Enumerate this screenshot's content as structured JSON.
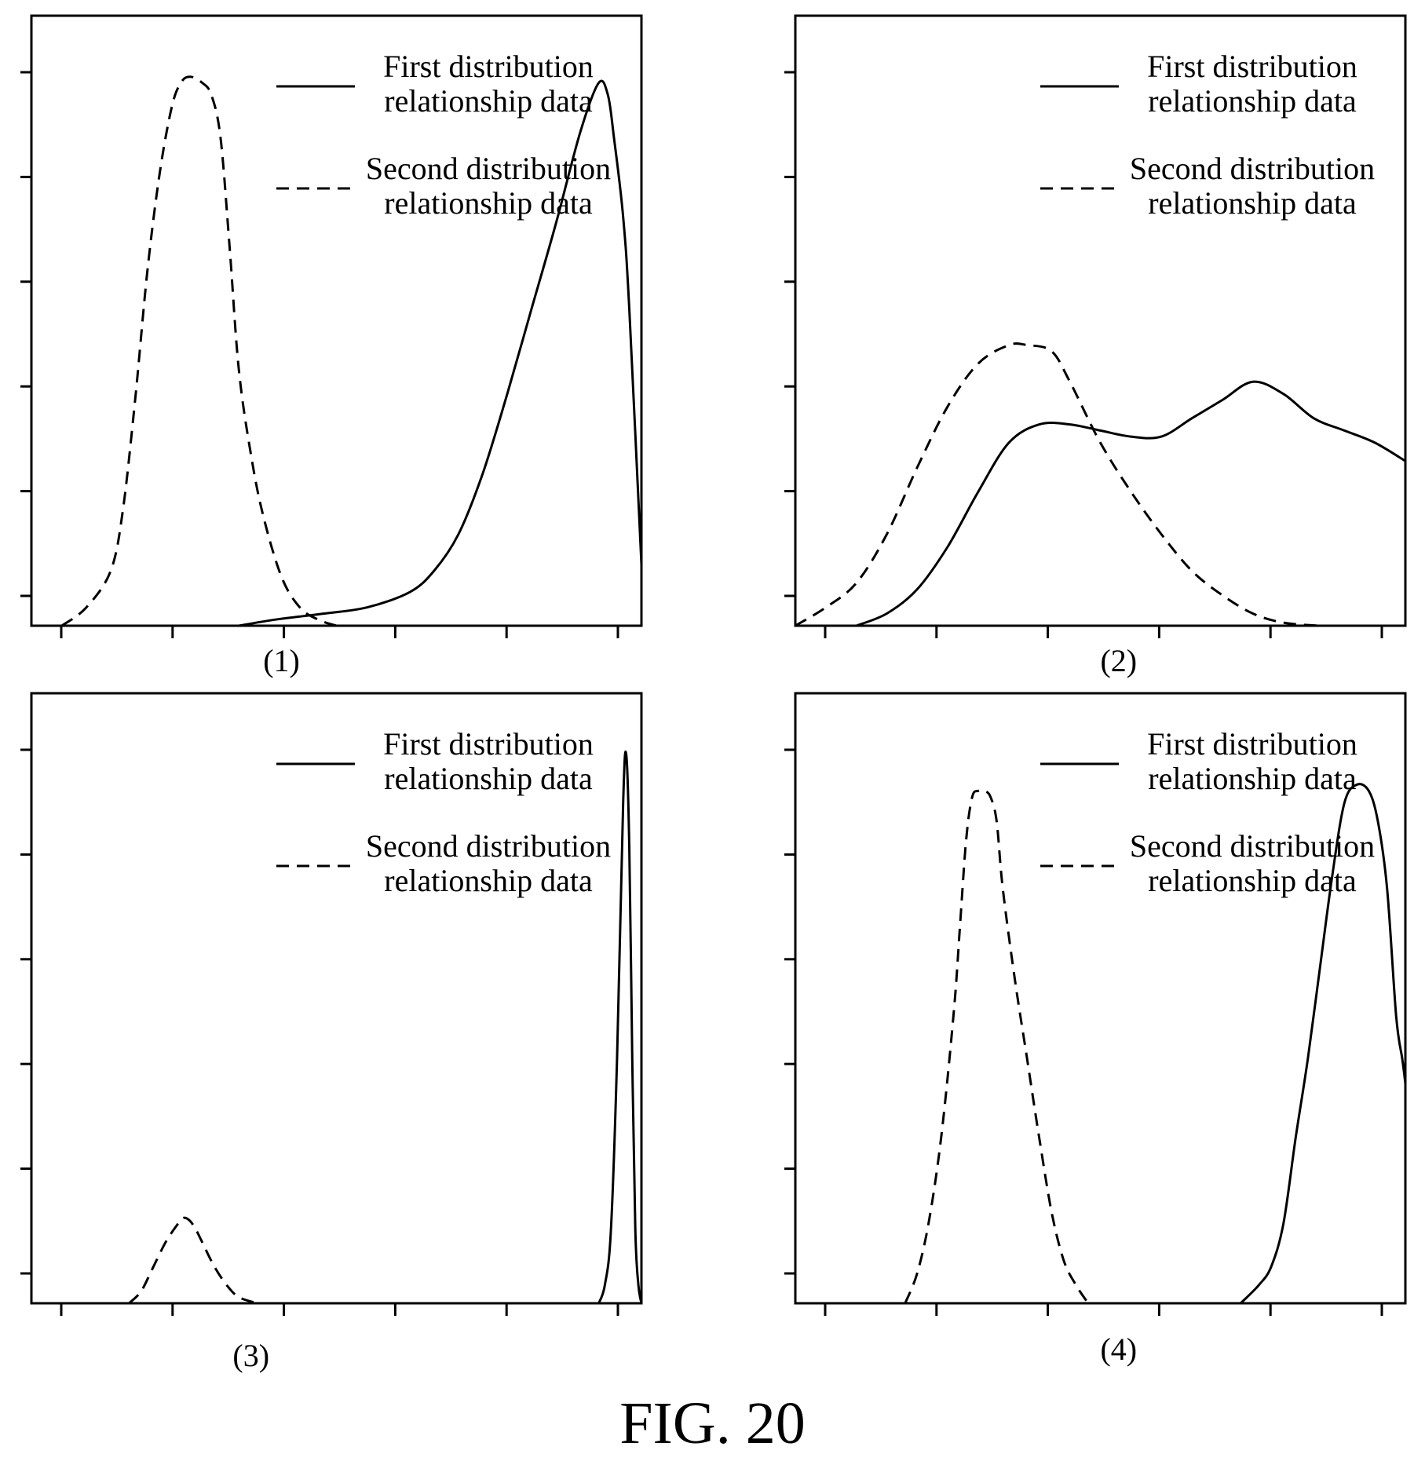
{
  "figure": {
    "caption": "FIG. 20"
  },
  "chart_data": [
    {
      "type": "line",
      "panel_label": "(1)",
      "xlim": [
        0,
        100
      ],
      "ylim": [
        0,
        100
      ],
      "y_ticks": 6,
      "x_ticks": 6,
      "grid": false,
      "legend_placement": "top-right",
      "series": [
        {
          "name": "First distribution relationship data",
          "style": "solid",
          "x": [
            34,
            40,
            48,
            55,
            62,
            66,
            70,
            74,
            78,
            82,
            86,
            90,
            93,
            94.5,
            95.5,
            97,
            98,
            100
          ],
          "y": [
            0,
            1,
            2,
            3,
            5.5,
            9,
            15,
            25,
            38,
            52,
            66,
            81,
            89,
            87,
            80,
            67,
            52,
            10
          ]
        },
        {
          "name": "Second distribution relationship data",
          "style": "dashed",
          "x": [
            5,
            9,
            13,
            15,
            17,
            19,
            21,
            23,
            24.5,
            26,
            28,
            29.5,
            31,
            32.5,
            34,
            36,
            38,
            41,
            44,
            47,
            50
          ],
          "y": [
            0,
            3,
            9,
            19,
            37,
            58,
            74,
            85,
            89,
            90,
            89,
            87,
            80,
            62,
            42,
            28,
            18,
            8,
            3,
            1,
            0
          ]
        }
      ]
    },
    {
      "type": "line",
      "panel_label": "(2)",
      "xlim": [
        0,
        100
      ],
      "ylim": [
        0,
        100
      ],
      "y_ticks": 6,
      "x_ticks": 6,
      "grid": false,
      "legend_placement": "top-right",
      "series": [
        {
          "name": "First distribution relationship data",
          "style": "solid",
          "x": [
            10,
            15,
            20,
            25,
            30,
            35,
            40,
            45,
            50,
            55,
            60,
            65,
            70,
            75,
            80,
            85,
            90,
            95,
            100
          ],
          "y": [
            0,
            2,
            6,
            13,
            22,
            30,
            33,
            33,
            32,
            31,
            31,
            34,
            37,
            40,
            38,
            34,
            32,
            30,
            27
          ]
        },
        {
          "name": "Second distribution relationship data",
          "style": "dashed",
          "x": [
            0,
            5,
            10,
            15,
            20,
            25,
            30,
            35,
            38,
            42,
            45,
            50,
            55,
            60,
            65,
            70,
            75,
            80,
            86
          ],
          "y": [
            0,
            3,
            7,
            15,
            26,
            36,
            43,
            46,
            46,
            45,
            40,
            30,
            22,
            15,
            9,
            5,
            2,
            0.5,
            0
          ]
        }
      ]
    },
    {
      "type": "line",
      "panel_label": "(3)",
      "xlim": [
        0,
        100
      ],
      "ylim": [
        0,
        100
      ],
      "y_ticks": 6,
      "x_ticks": 6,
      "grid": false,
      "legend_placement": "top-right",
      "series": [
        {
          "name": "First distribution relationship data",
          "style": "solid",
          "x": [
            93,
            94,
            95,
            96,
            97,
            97.5,
            98,
            98.5,
            99,
            99.5,
            100
          ],
          "y": [
            0,
            3,
            12,
            40,
            82,
            90,
            75,
            40,
            12,
            3,
            0
          ]
        },
        {
          "name": "Second distribution relationship data",
          "style": "dashed",
          "x": [
            16,
            18,
            20,
            22,
            24,
            25,
            26,
            27,
            28,
            30,
            32,
            34,
            37
          ],
          "y": [
            0,
            2,
            6,
            10,
            13,
            14,
            13.5,
            12,
            10,
            6,
            3,
            1,
            0
          ]
        }
      ]
    },
    {
      "type": "line",
      "panel_label": "(4)",
      "xlim": [
        0,
        100
      ],
      "ylim": [
        0,
        100
      ],
      "y_ticks": 6,
      "x_ticks": 6,
      "grid": false,
      "legend_placement": "top-right",
      "series": [
        {
          "name": "First distribution relationship data",
          "style": "solid",
          "x": [
            73,
            76,
            78,
            80,
            82,
            84,
            86,
            88,
            90,
            92,
            94,
            95.5,
            97,
            98.5,
            99.5,
            100
          ],
          "y": [
            0,
            3,
            6,
            13,
            27,
            40,
            55,
            70,
            82,
            85,
            84,
            79,
            68,
            47,
            40,
            36
          ]
        },
        {
          "name": "Second distribution relationship data",
          "style": "dashed",
          "x": [
            18,
            20,
            22,
            24,
            26,
            27,
            28,
            29,
            30,
            31,
            32,
            33,
            34,
            36,
            38,
            40,
            42,
            44,
            46,
            48
          ],
          "y": [
            0,
            5,
            14,
            28,
            48,
            62,
            76,
            83,
            84,
            84,
            83,
            79,
            68,
            53,
            40,
            27,
            15,
            7,
            3,
            0
          ]
        }
      ]
    }
  ]
}
